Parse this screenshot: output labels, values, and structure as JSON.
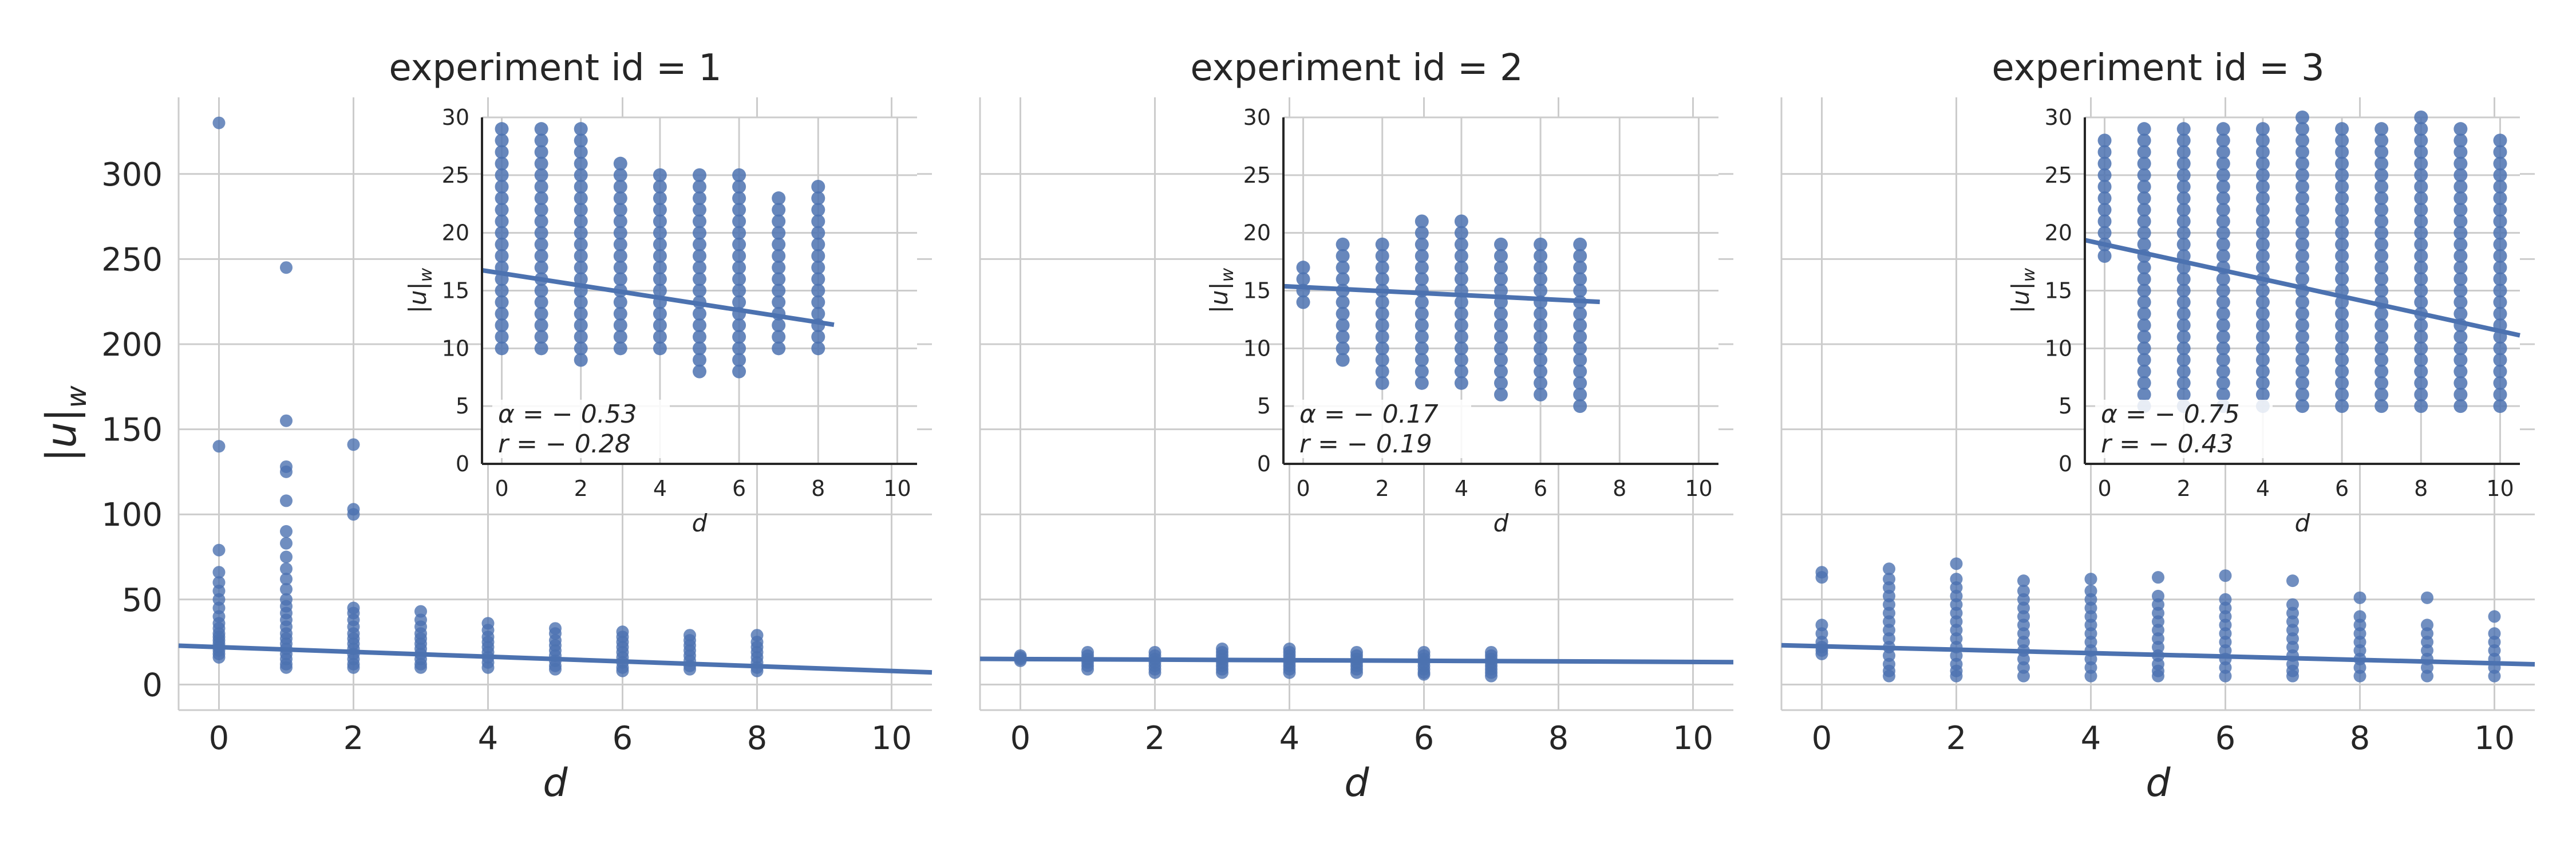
{
  "figure": {
    "ylabel": "|u|_w",
    "ylabel_main": "|u|",
    "ylabel_sub": "w",
    "xlabel": "d",
    "colors": {
      "points": "#4c72b0",
      "grid": "#cccccc",
      "axis": "#262626"
    }
  },
  "chart_data": [
    {
      "type": "scatter",
      "title": "experiment id = 1",
      "xlabel": "d",
      "ylabel": "|u|_w",
      "xlim": [
        -0.6,
        10.6
      ],
      "ylim": [
        -15,
        345
      ],
      "xticks": [
        "0",
        "2",
        "4",
        "6",
        "8",
        "10"
      ],
      "yticks": [
        "0",
        "50",
        "100",
        "150",
        "200",
        "250",
        "300"
      ],
      "grid": true,
      "regression": {
        "intercept": 22.0,
        "slope": -1.4,
        "x_range": [
          -0.6,
          10.6
        ]
      },
      "points": {
        "0": [
          330,
          140,
          79,
          66,
          60,
          55,
          50,
          45,
          40,
          36,
          33,
          30,
          28,
          26,
          24,
          22,
          20,
          18,
          16
        ],
        "1": [
          245,
          155,
          128,
          125,
          108,
          90,
          83,
          75,
          68,
          62,
          56,
          50,
          46,
          42,
          38,
          34,
          30,
          27,
          24,
          21,
          18,
          15,
          12,
          10
        ],
        "2": [
          141,
          103,
          100,
          45,
          42,
          38,
          34,
          30,
          27,
          24,
          21,
          18,
          15,
          12,
          10
        ],
        "3": [
          43,
          38,
          34,
          30,
          27,
          24,
          21,
          18,
          15,
          12,
          10
        ],
        "4": [
          36,
          32,
          28,
          25,
          22,
          19,
          16,
          13,
          10
        ],
        "5": [
          33,
          30,
          26,
          23,
          20,
          17,
          14,
          11,
          9
        ],
        "6": [
          31,
          28,
          25,
          22,
          19,
          16,
          13,
          10,
          8
        ],
        "7": [
          29,
          26,
          23,
          20,
          17,
          14,
          11,
          9
        ],
        "8": [
          29,
          25,
          22,
          19,
          16,
          13,
          10,
          8
        ]
      },
      "inset": {
        "xlabel": "d",
        "ylabel": "|u|_w",
        "xlim": [
          -0.5,
          10.5
        ],
        "ylim": [
          0,
          30
        ],
        "xticks": [
          "0",
          "2",
          "4",
          "6",
          "8",
          "10"
        ],
        "yticks": [
          "0",
          "5",
          "10",
          "15",
          "20",
          "25",
          "30"
        ],
        "regression": {
          "intercept": 16.5,
          "slope": -0.53,
          "x_range": [
            -0.5,
            8.4
          ]
        },
        "x_max": 8,
        "ranges": [
          [
            10,
            29
          ],
          [
            10,
            29
          ],
          [
            9,
            29
          ],
          [
            10,
            26
          ],
          [
            10,
            25
          ],
          [
            8,
            25
          ],
          [
            8,
            25
          ],
          [
            10,
            23
          ],
          [
            10,
            24
          ]
        ],
        "alpha_text": "α = − 0.53",
        "r_text": "r = − 0.28"
      }
    },
    {
      "type": "scatter",
      "title": "experiment id = 2",
      "xlabel": "d",
      "ylabel": "|u|_w",
      "xlim": [
        -0.6,
        10.6
      ],
      "ylim": [
        -15,
        345
      ],
      "xticks": [
        "0",
        "2",
        "4",
        "6",
        "8",
        "10"
      ],
      "yticks": [
        "0",
        "50",
        "100",
        "150",
        "200",
        "250",
        "300"
      ],
      "grid": true,
      "regression": {
        "intercept": 15.0,
        "slope": -0.17,
        "x_range": [
          -0.6,
          10.6
        ]
      },
      "points": {
        "0": [
          17,
          16,
          15,
          14
        ],
        "1": [
          19,
          17,
          15,
          13,
          11,
          9
        ],
        "2": [
          19,
          17,
          15,
          13,
          11,
          9,
          7
        ],
        "3": [
          21,
          19,
          17,
          15,
          13,
          11,
          9,
          7
        ],
        "4": [
          21,
          19,
          17,
          15,
          13,
          11,
          9,
          7
        ],
        "5": [
          19,
          17,
          15,
          13,
          11,
          9,
          7
        ],
        "6": [
          19,
          17,
          15,
          13,
          11,
          9,
          7,
          6
        ],
        "7": [
          19,
          17,
          15,
          13,
          11,
          9,
          7,
          5
        ]
      },
      "inset": {
        "xlabel": "d",
        "ylabel": "|u|_w",
        "xlim": [
          -0.5,
          10.5
        ],
        "ylim": [
          0,
          30
        ],
        "xticks": [
          "0",
          "2",
          "4",
          "6",
          "8",
          "10"
        ],
        "yticks": [
          "0",
          "5",
          "10",
          "15",
          "20",
          "25",
          "30"
        ],
        "regression": {
          "intercept": 15.3,
          "slope": -0.17,
          "x_range": [
            -0.5,
            7.5
          ]
        },
        "x_max": 7,
        "ranges": [
          [
            14,
            17
          ],
          [
            9,
            19
          ],
          [
            7,
            19
          ],
          [
            7,
            21
          ],
          [
            7,
            21
          ],
          [
            6,
            19
          ],
          [
            6,
            19
          ],
          [
            5,
            19
          ]
        ],
        "alpha_text": "α = − 0.17",
        "r_text": "r = − 0.19"
      }
    },
    {
      "type": "scatter",
      "title": "experiment id = 3",
      "xlabel": "d",
      "ylabel": "|u|_w",
      "xlim": [
        -0.6,
        10.6
      ],
      "ylim": [
        -15,
        345
      ],
      "xticks": [
        "0",
        "2",
        "4",
        "6",
        "8",
        "10"
      ],
      "yticks": [
        "0",
        "50",
        "100",
        "150",
        "200",
        "250",
        "300"
      ],
      "grid": true,
      "regression": {
        "intercept": 22.5,
        "slope": -1.0,
        "x_range": [
          -0.6,
          10.6
        ]
      },
      "points": {
        "0": [
          66,
          63,
          35,
          30,
          25,
          22,
          20,
          18
        ],
        "1": [
          68,
          62,
          57,
          52,
          47,
          42,
          37,
          32,
          27,
          22,
          17,
          12,
          8,
          5
        ],
        "2": [
          71,
          62,
          57,
          52,
          47,
          42,
          37,
          32,
          27,
          22,
          17,
          12,
          8,
          5
        ],
        "3": [
          61,
          55,
          50,
          45,
          40,
          35,
          30,
          25,
          20,
          15,
          10,
          5
        ],
        "4": [
          62,
          55,
          50,
          45,
          40,
          35,
          30,
          25,
          20,
          15,
          10,
          5
        ],
        "5": [
          63,
          52,
          47,
          42,
          37,
          32,
          27,
          22,
          17,
          12,
          8,
          5
        ],
        "6": [
          64,
          50,
          45,
          40,
          35,
          30,
          25,
          20,
          15,
          10,
          5
        ],
        "7": [
          61,
          47,
          42,
          37,
          32,
          27,
          22,
          17,
          12,
          8,
          5
        ],
        "8": [
          51,
          40,
          35,
          30,
          25,
          20,
          15,
          10,
          5
        ],
        "9": [
          51,
          35,
          30,
          25,
          20,
          15,
          10,
          5
        ],
        "10": [
          40,
          30,
          25,
          20,
          15,
          10,
          5
        ]
      },
      "inset": {
        "xlabel": "d",
        "ylabel": "|u|_w",
        "xlim": [
          -0.5,
          10.5
        ],
        "ylim": [
          0,
          30
        ],
        "xticks": [
          "0",
          "2",
          "4",
          "6",
          "8",
          "10"
        ],
        "yticks": [
          "0",
          "5",
          "10",
          "15",
          "20",
          "25",
          "30"
        ],
        "regression": {
          "intercept": 19.0,
          "slope": -0.75,
          "x_range": [
            -0.5,
            10.5
          ]
        },
        "x_max": 10,
        "ranges": [
          [
            18,
            28
          ],
          [
            5,
            29
          ],
          [
            5,
            29
          ],
          [
            5,
            29
          ],
          [
            5,
            29
          ],
          [
            5,
            30
          ],
          [
            5,
            29
          ],
          [
            5,
            29
          ],
          [
            5,
            30
          ],
          [
            5,
            29
          ],
          [
            5,
            28
          ]
        ],
        "alpha_text": "α = − 0.75",
        "r_text": "r = − 0.43"
      }
    }
  ]
}
